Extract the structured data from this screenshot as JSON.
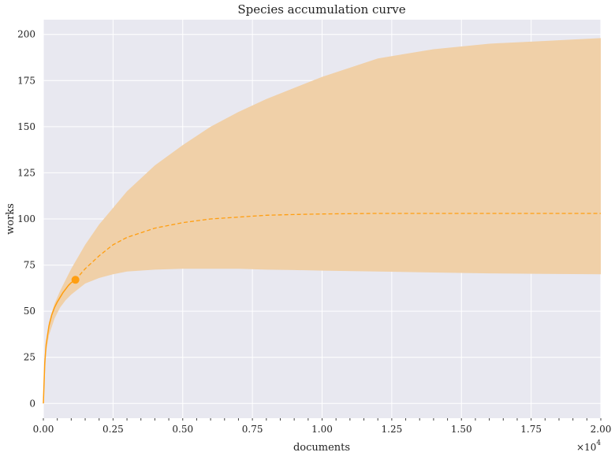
{
  "chart_data": {
    "type": "area",
    "title": "Species accumulation curve",
    "xlabel": "documents",
    "ylabel": "works",
    "x_multiplier_label": "×10",
    "x_multiplier_exponent": "4",
    "xlim": [
      0,
      20000
    ],
    "ylim": [
      -8,
      208
    ],
    "xticks": [
      0,
      2500,
      5000,
      7500,
      10000,
      12500,
      15000,
      17500,
      20000
    ],
    "xtick_labels": [
      "0.00",
      "0.25",
      "0.50",
      "0.75",
      "1.00",
      "1.25",
      "1.50",
      "1.75",
      "2.00"
    ],
    "yticks": [
      0,
      25,
      50,
      75,
      100,
      125,
      150,
      175,
      200
    ],
    "ytick_labels": [
      "0",
      "25",
      "50",
      "75",
      "100",
      "125",
      "150",
      "175",
      "200"
    ],
    "grid": true,
    "background_color": "#e8e8f0",
    "line_color": "#ff9e10",
    "band_color": "#f0d0a8",
    "observed": {
      "x": [
        0,
        50,
        100,
        200,
        300,
        400,
        500,
        600,
        700,
        800,
        900,
        1000,
        1150
      ],
      "y": [
        0,
        22,
        32,
        42,
        48,
        52,
        55,
        57.5,
        60,
        62,
        64,
        65.5,
        67
      ]
    },
    "extrapolated": {
      "x": [
        1150,
        1500,
        2000,
        2500,
        3000,
        4000,
        5000,
        6000,
        7000,
        8000,
        9000,
        10000,
        12000,
        14000,
        16000,
        18000,
        20000
      ],
      "y": [
        67,
        73,
        80,
        86,
        90,
        95,
        98,
        100,
        101,
        102,
        102.4,
        102.7,
        103,
        103,
        103,
        103,
        103
      ]
    },
    "observed_point": {
      "x": 1150,
      "y": 67
    },
    "band": {
      "x": [
        0,
        100,
        200,
        400,
        600,
        800,
        1000,
        1500,
        2000,
        2500,
        3000,
        4000,
        5000,
        6000,
        7000,
        8000,
        9000,
        10000,
        12000,
        14000,
        16000,
        18000,
        20000
      ],
      "lower": [
        0,
        28,
        37,
        46,
        52,
        56,
        59,
        65,
        68,
        70,
        71.5,
        72.5,
        73,
        73,
        73,
        72.5,
        72.3,
        72,
        71.5,
        71,
        70.5,
        70.2,
        70
      ],
      "upper": [
        0,
        32,
        44,
        54,
        61,
        67,
        73,
        86,
        97,
        106,
        115,
        129,
        140,
        150,
        158,
        165,
        171,
        177,
        187,
        192,
        195,
        196.5,
        198
      ]
    }
  }
}
